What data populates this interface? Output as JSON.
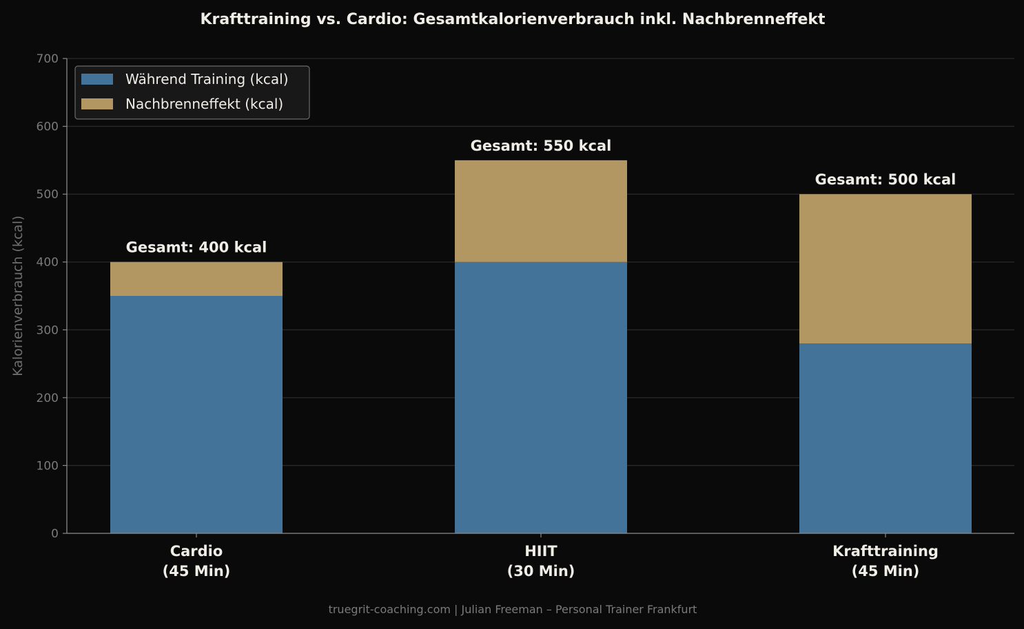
{
  "chart_data": {
    "type": "bar",
    "stacked": true,
    "title": "Krafttraining vs. Cardio: Gesamtkalorienverbrauch inkl. Nachbrenneffekt",
    "xlabel": "",
    "ylabel": "Kalorienverbrauch (kcal)",
    "ylim": [
      0,
      700
    ],
    "yticks": [
      0,
      100,
      200,
      300,
      400,
      500,
      600,
      700
    ],
    "grid": true,
    "legend_position": "top-left",
    "categories": [
      [
        "Cardio",
        "(45 Min)"
      ],
      [
        "HIIT",
        "(30 Min)"
      ],
      [
        "Krafttraining",
        "(45 Min)"
      ]
    ],
    "series": [
      {
        "name": "Während Training (kcal)",
        "values": [
          350,
          400,
          280
        ],
        "color": "#44739a"
      },
      {
        "name": "Nachbrenneffekt (kcal)",
        "values": [
          50,
          150,
          220
        ],
        "color": "#b29762"
      }
    ],
    "annotations": [
      "Gesamt: 400 kcal",
      "Gesamt: 550 kcal",
      "Gesamt: 500 kcal"
    ]
  },
  "footer": "truegrit-coaching.com | Julian Freeman – Personal Trainer Frankfurt",
  "colors": {
    "background": "#0a0a0a",
    "text": "#f0ede6",
    "muted": "#8a8a8a",
    "grid": "#2a2a2a"
  }
}
